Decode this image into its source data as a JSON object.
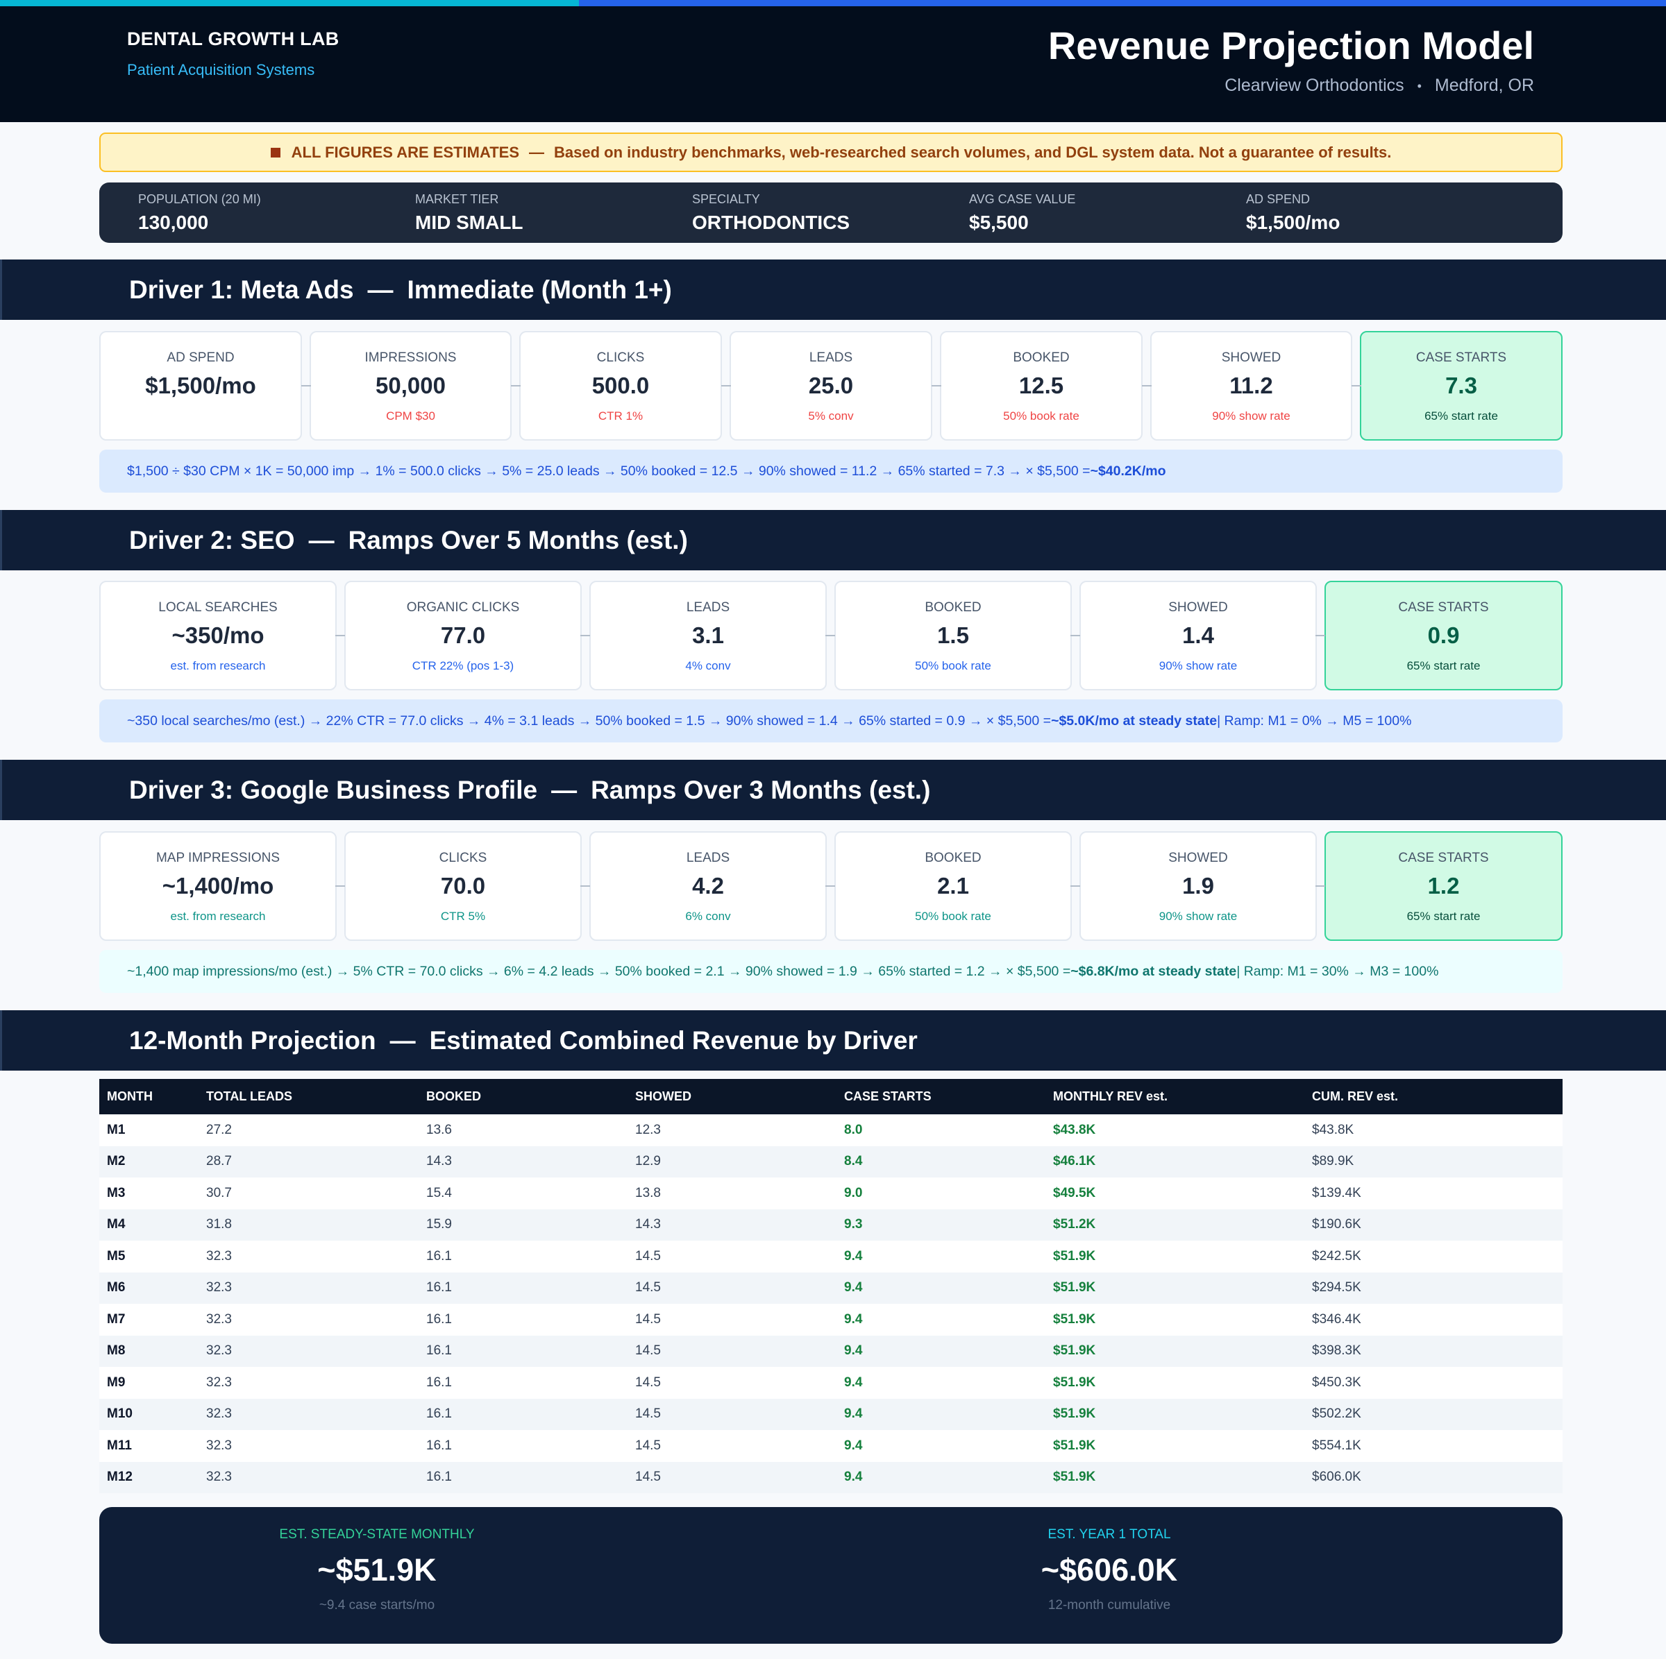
{
  "header": {
    "brand": "DENTAL GROWTH LAB",
    "brand_sub": "Patient Acquisition Systems",
    "title": "Revenue Projection Model",
    "practice": "Clearview Orthodontics",
    "sep": "•",
    "location": "Medford, OR"
  },
  "warning": {
    "label": "ALL FIGURES ARE ESTIMATES",
    "dash": "—",
    "text": "Based on industry benchmarks, web-researched search volumes, and DGL system data. Not a guarantee of results.",
    "icon": "square-bullet-icon",
    "color": "#92400e"
  },
  "stats": [
    {
      "label": "POPULATION (20 MI)",
      "value": "130,000"
    },
    {
      "label": "MARKET TIER",
      "value": "MID SMALL"
    },
    {
      "label": "SPECIALTY",
      "value": "ORTHODONTICS"
    },
    {
      "label": "AVG CASE VALUE",
      "value": "$5,500"
    },
    {
      "label": "AD SPEND",
      "value": "$1,500/mo"
    }
  ],
  "drivers": [
    {
      "title": "Driver 1: Meta Ads",
      "dash": "—",
      "subtitle": "Immediate (Month 1+)",
      "cards": [
        {
          "label": "AD SPEND",
          "value": "$1,500/mo",
          "sub": ""
        },
        {
          "label": "IMPRESSIONS",
          "value": "50,000",
          "sub": "CPM $30"
        },
        {
          "label": "CLICKS",
          "value": "500.0",
          "sub": "CTR 1%"
        },
        {
          "label": "LEADS",
          "value": "25.0",
          "sub": "5% conv"
        },
        {
          "label": "BOOKED",
          "value": "12.5",
          "sub": "50% book rate"
        },
        {
          "label": "SHOWED",
          "value": "11.2",
          "sub": "90% show rate"
        },
        {
          "label": "CASE STARTS",
          "value": "7.3",
          "sub": "65% start rate"
        }
      ],
      "formula": "$1,500 ÷ $30 CPM × 1K = 50,000 imp → 1% = 500.0 clicks → 5% = 25.0 leads → 50% booked = 12.5 → 90% showed = 11.2 → 65% started = 7.3 → × $5,500 = ",
      "formula_bold": "~$40.2K/mo",
      "formula_tail": ""
    },
    {
      "title": "Driver 2: SEO",
      "dash": "—",
      "subtitle": "Ramps Over 5 Months (est.)",
      "cards": [
        {
          "label": "LOCAL SEARCHES",
          "value": "~350/mo",
          "sub": "est. from research"
        },
        {
          "label": "ORGANIC CLICKS",
          "value": "77.0",
          "sub": "CTR 22% (pos 1-3)"
        },
        {
          "label": "LEADS",
          "value": "3.1",
          "sub": "4% conv"
        },
        {
          "label": "BOOKED",
          "value": "1.5",
          "sub": "50% book rate"
        },
        {
          "label": "SHOWED",
          "value": "1.4",
          "sub": "90% show rate"
        },
        {
          "label": "CASE STARTS",
          "value": "0.9",
          "sub": "65% start rate"
        }
      ],
      "formula": "~350 local searches/mo (est.) → 22% CTR = 77.0 clicks → 4% = 3.1 leads → 50% booked = 1.5 → 90% showed = 1.4 → 65% started = 0.9 → × $5,500 = ",
      "formula_bold": "~$5.0K/mo at steady state",
      "formula_tail": " | Ramp: M1 = 0% → M5 = 100%"
    },
    {
      "title": "Driver 3: Google Business Profile",
      "dash": "—",
      "subtitle": "Ramps Over 3 Months (est.)",
      "cards": [
        {
          "label": "MAP IMPRESSIONS",
          "value": "~1,400/mo",
          "sub": "est. from research"
        },
        {
          "label": "CLICKS",
          "value": "70.0",
          "sub": "CTR 5%"
        },
        {
          "label": "LEADS",
          "value": "4.2",
          "sub": "6% conv"
        },
        {
          "label": "BOOKED",
          "value": "2.1",
          "sub": "50% book rate"
        },
        {
          "label": "SHOWED",
          "value": "1.9",
          "sub": "90% show rate"
        },
        {
          "label": "CASE STARTS",
          "value": "1.2",
          "sub": "65% start rate"
        }
      ],
      "formula": "~1,400 map impressions/mo (est.) → 5% CTR = 70.0 clicks → 6% = 4.2 leads → 50% booked = 2.1 → 90% showed = 1.9 → 65% started = 1.2 → × $5,500 = ",
      "formula_bold": "~$6.8K/mo at steady state",
      "formula_tail": " | Ramp: M1 = 30% → M3 = 100%"
    }
  ],
  "projection": {
    "title": "12-Month Projection",
    "dash": "—",
    "subtitle": "Estimated Combined Revenue by Driver",
    "columns": [
      "MONTH",
      "TOTAL LEADS",
      "BOOKED",
      "SHOWED",
      "CASE STARTS",
      "MONTHLY REV est.",
      "CUM. REV est."
    ],
    "rows": [
      [
        "M1",
        "27.2",
        "13.6",
        "12.3",
        "8.0",
        "$43.8K",
        "$43.8K"
      ],
      [
        "M2",
        "28.7",
        "14.3",
        "12.9",
        "8.4",
        "$46.1K",
        "$89.9K"
      ],
      [
        "M3",
        "30.7",
        "15.4",
        "13.8",
        "9.0",
        "$49.5K",
        "$139.4K"
      ],
      [
        "M4",
        "31.8",
        "15.9",
        "14.3",
        "9.3",
        "$51.2K",
        "$190.6K"
      ],
      [
        "M5",
        "32.3",
        "16.1",
        "14.5",
        "9.4",
        "$51.9K",
        "$242.5K"
      ],
      [
        "M6",
        "32.3",
        "16.1",
        "14.5",
        "9.4",
        "$51.9K",
        "$294.5K"
      ],
      [
        "M7",
        "32.3",
        "16.1",
        "14.5",
        "9.4",
        "$51.9K",
        "$346.4K"
      ],
      [
        "M8",
        "32.3",
        "16.1",
        "14.5",
        "9.4",
        "$51.9K",
        "$398.3K"
      ],
      [
        "M9",
        "32.3",
        "16.1",
        "14.5",
        "9.4",
        "$51.9K",
        "$450.3K"
      ],
      [
        "M10",
        "32.3",
        "16.1",
        "14.5",
        "9.4",
        "$51.9K",
        "$502.2K"
      ],
      [
        "M11",
        "32.3",
        "16.1",
        "14.5",
        "9.4",
        "$51.9K",
        "$554.1K"
      ],
      [
        "M12",
        "32.3",
        "16.1",
        "14.5",
        "9.4",
        "$51.9K",
        "$606.0K"
      ]
    ]
  },
  "totals": [
    {
      "label": "EST. STEADY-STATE MONTHLY",
      "value": "~$51.9K",
      "sub": "~9.4 case starts/mo",
      "color": "#34d399"
    },
    {
      "label": "EST. YEAR 1 TOTAL",
      "value": "~$606.0K",
      "sub": "12-month cumulative",
      "color": "#22d3ee"
    }
  ]
}
